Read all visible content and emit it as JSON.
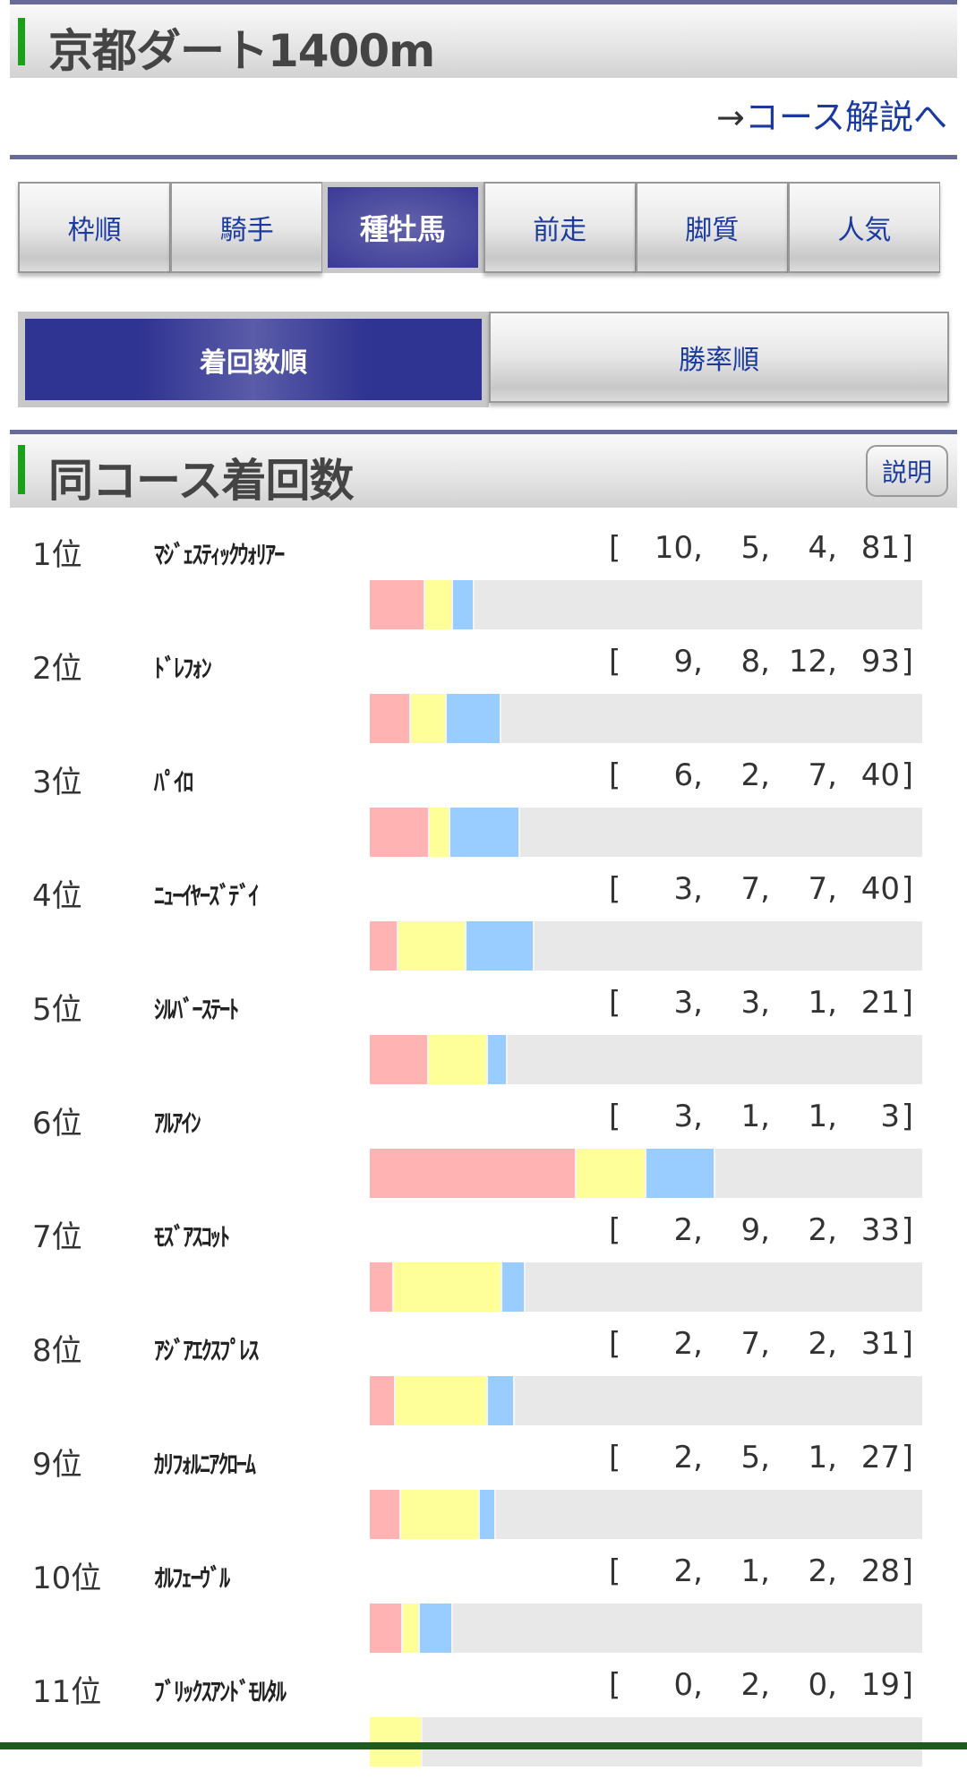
{
  "header": {
    "title": "京都ダート1400m"
  },
  "course_link": {
    "arrow": "→",
    "label": "コース解説へ"
  },
  "tabs": [
    {
      "label": "枠順",
      "active": false
    },
    {
      "label": "騎手",
      "active": false
    },
    {
      "label": "種牡馬",
      "active": true
    },
    {
      "label": "前走",
      "active": false
    },
    {
      "label": "脚質",
      "active": false
    },
    {
      "label": "人気",
      "active": false
    }
  ],
  "sort_tabs": [
    {
      "label": "着回数順",
      "active": true
    },
    {
      "label": "勝率順",
      "active": false
    }
  ],
  "section": {
    "title": "同コース着回数",
    "explain_label": "説明"
  },
  "colors": {
    "first": "#ffb3b3",
    "second": "#ffff99",
    "third": "#99ccff",
    "other": "#e8e8e8"
  },
  "rows": [
    {
      "rank": "1位",
      "name": "ﾏｼﾞｪｽﾃｨｯｸｳｫﾘｱｰ",
      "counts": [
        10,
        5,
        4,
        81
      ]
    },
    {
      "rank": "2位",
      "name": "ﾄﾞﾚﾌｫﾝ",
      "counts": [
        9,
        8,
        12,
        93
      ]
    },
    {
      "rank": "3位",
      "name": "ﾊﾟｲﾛ",
      "counts": [
        6,
        2,
        7,
        40
      ]
    },
    {
      "rank": "4位",
      "name": "ﾆｭｰｲﾔｰｽﾞﾃﾞｲ",
      "counts": [
        3,
        7,
        7,
        40
      ]
    },
    {
      "rank": "5位",
      "name": "ｼﾙﾊﾞｰｽﾃｰﾄ",
      "counts": [
        3,
        3,
        1,
        21
      ]
    },
    {
      "rank": "6位",
      "name": "ｱﾙｱｲﾝ",
      "counts": [
        3,
        1,
        1,
        3
      ]
    },
    {
      "rank": "7位",
      "name": "ﾓｽﾞｱｽｺｯﾄ",
      "counts": [
        2,
        9,
        2,
        33
      ]
    },
    {
      "rank": "8位",
      "name": "ｱｼﾞｱｴｸｽﾌﾟﾚｽ",
      "counts": [
        2,
        7,
        2,
        31
      ]
    },
    {
      "rank": "9位",
      "name": "ｶﾘﾌｫﾙﾆｱｸﾛｰﾑ",
      "counts": [
        2,
        5,
        1,
        27
      ]
    },
    {
      "rank": "10位",
      "name": "ｵﾙﾌｪｰｳﾞﾙ",
      "counts": [
        2,
        1,
        2,
        28
      ]
    },
    {
      "rank": "11位",
      "name": "ﾌﾞﾘｯｸｽｱﾝﾄﾞﾓﾙﾀﾙ",
      "counts": [
        0,
        2,
        0,
        19
      ]
    }
  ]
}
